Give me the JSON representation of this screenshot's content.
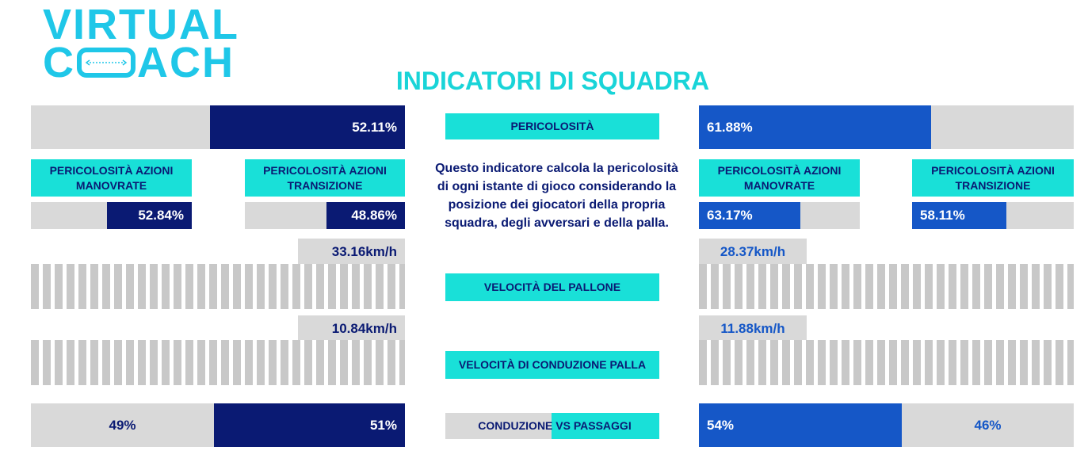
{
  "logo": {
    "line1": "VIRTUAL",
    "line2_a": "C",
    "line2_b": "ACH"
  },
  "title": "INDICATORI DI SQUADRA",
  "colors": {
    "navy": "#0a1a73",
    "blue": "#1557c7",
    "cyan": "#19e0d8",
    "grey": "#d9d9d9",
    "logo": "#1fc7e8"
  },
  "pericolosita": {
    "label": "PERICOLOSITÀ",
    "left_value": "52.11%",
    "right_value": "61.88%",
    "left_fraction": 0.5211,
    "right_fraction": 0.6188
  },
  "description": "Questo indicatore calcola la pericolosità di ogni istante di gioco considerando la posizione dei giocatori della propria squadra, degli avversari e della palla.",
  "manovrate": {
    "label": "PERICOLOSITÀ AZIONI MANOVRATE",
    "left_value": "52.84%",
    "right_value": "63.17%"
  },
  "transizione": {
    "label": "PERICOLOSITÀ AZIONI TRANSIZIONE",
    "left_value": "48.86%",
    "right_value": "58.11%"
  },
  "velocita_pallone": {
    "label": "VELOCITÀ DEL PALLONE",
    "left_value": "33.16km/h",
    "right_value": "28.37km/h"
  },
  "velocita_conduzione": {
    "label": "VELOCITÀ DI CONDUZIONE PALLA",
    "left_value": "10.84km/h",
    "right_value": "11.88km/h"
  },
  "conduzione_passaggi": {
    "label": "CONDUZIONE VS PASSAGGI",
    "left_a": "49%",
    "left_b": "51%",
    "right_a": "54%",
    "right_b": "46%"
  }
}
